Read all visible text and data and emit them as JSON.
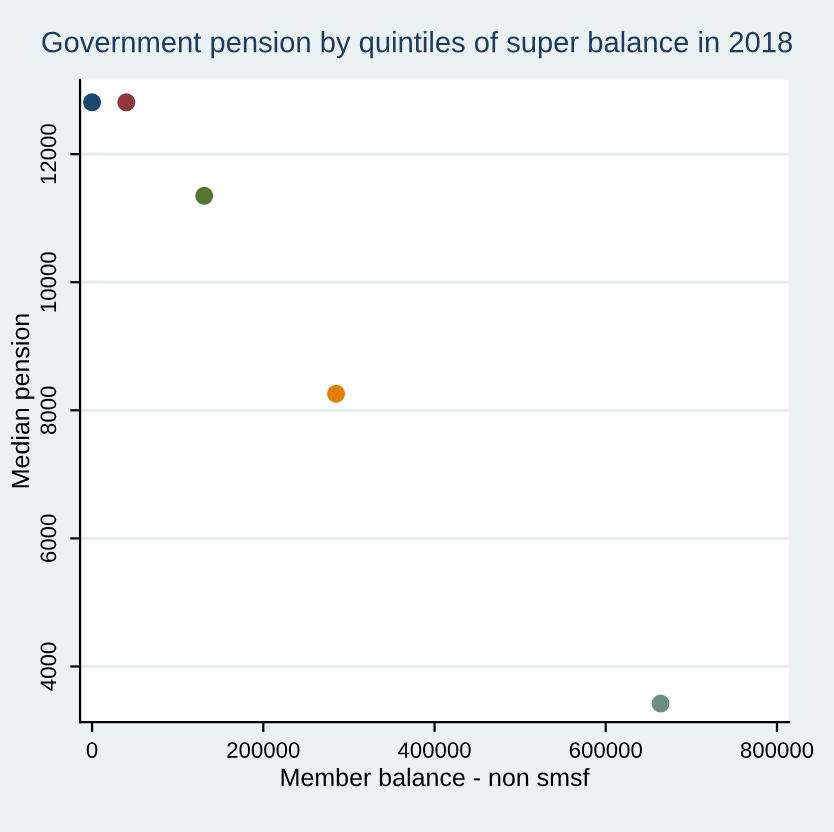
{
  "chart_data": {
    "type": "scatter",
    "title": "Government pension by quintiles of super balance in 2018",
    "xlabel": "Member balance - non smsf",
    "ylabel": "Median pension",
    "series": [
      {
        "color": "#1a476f",
        "x": [
          0
        ],
        "values": [
          12810
        ]
      },
      {
        "color": "#90353b",
        "x": [
          40000
        ],
        "values": [
          12810
        ]
      },
      {
        "color": "#55752f",
        "x": [
          131000
        ],
        "values": [
          11350
        ]
      },
      {
        "color": "#e37e00",
        "x": [
          285000
        ],
        "values": [
          8260
        ]
      },
      {
        "color": "#6e8e84",
        "x": [
          664000
        ],
        "values": [
          3420
        ]
      }
    ],
    "xlim": [
      -14000,
      814000
    ],
    "xticks": [
      0,
      200000,
      400000,
      600000,
      800000
    ],
    "ylim": [
      3130,
      13160
    ],
    "yticks": [
      4000,
      6000,
      8000,
      10000,
      12000
    ],
    "grid": "y",
    "marker": "circle",
    "legend": false
  }
}
